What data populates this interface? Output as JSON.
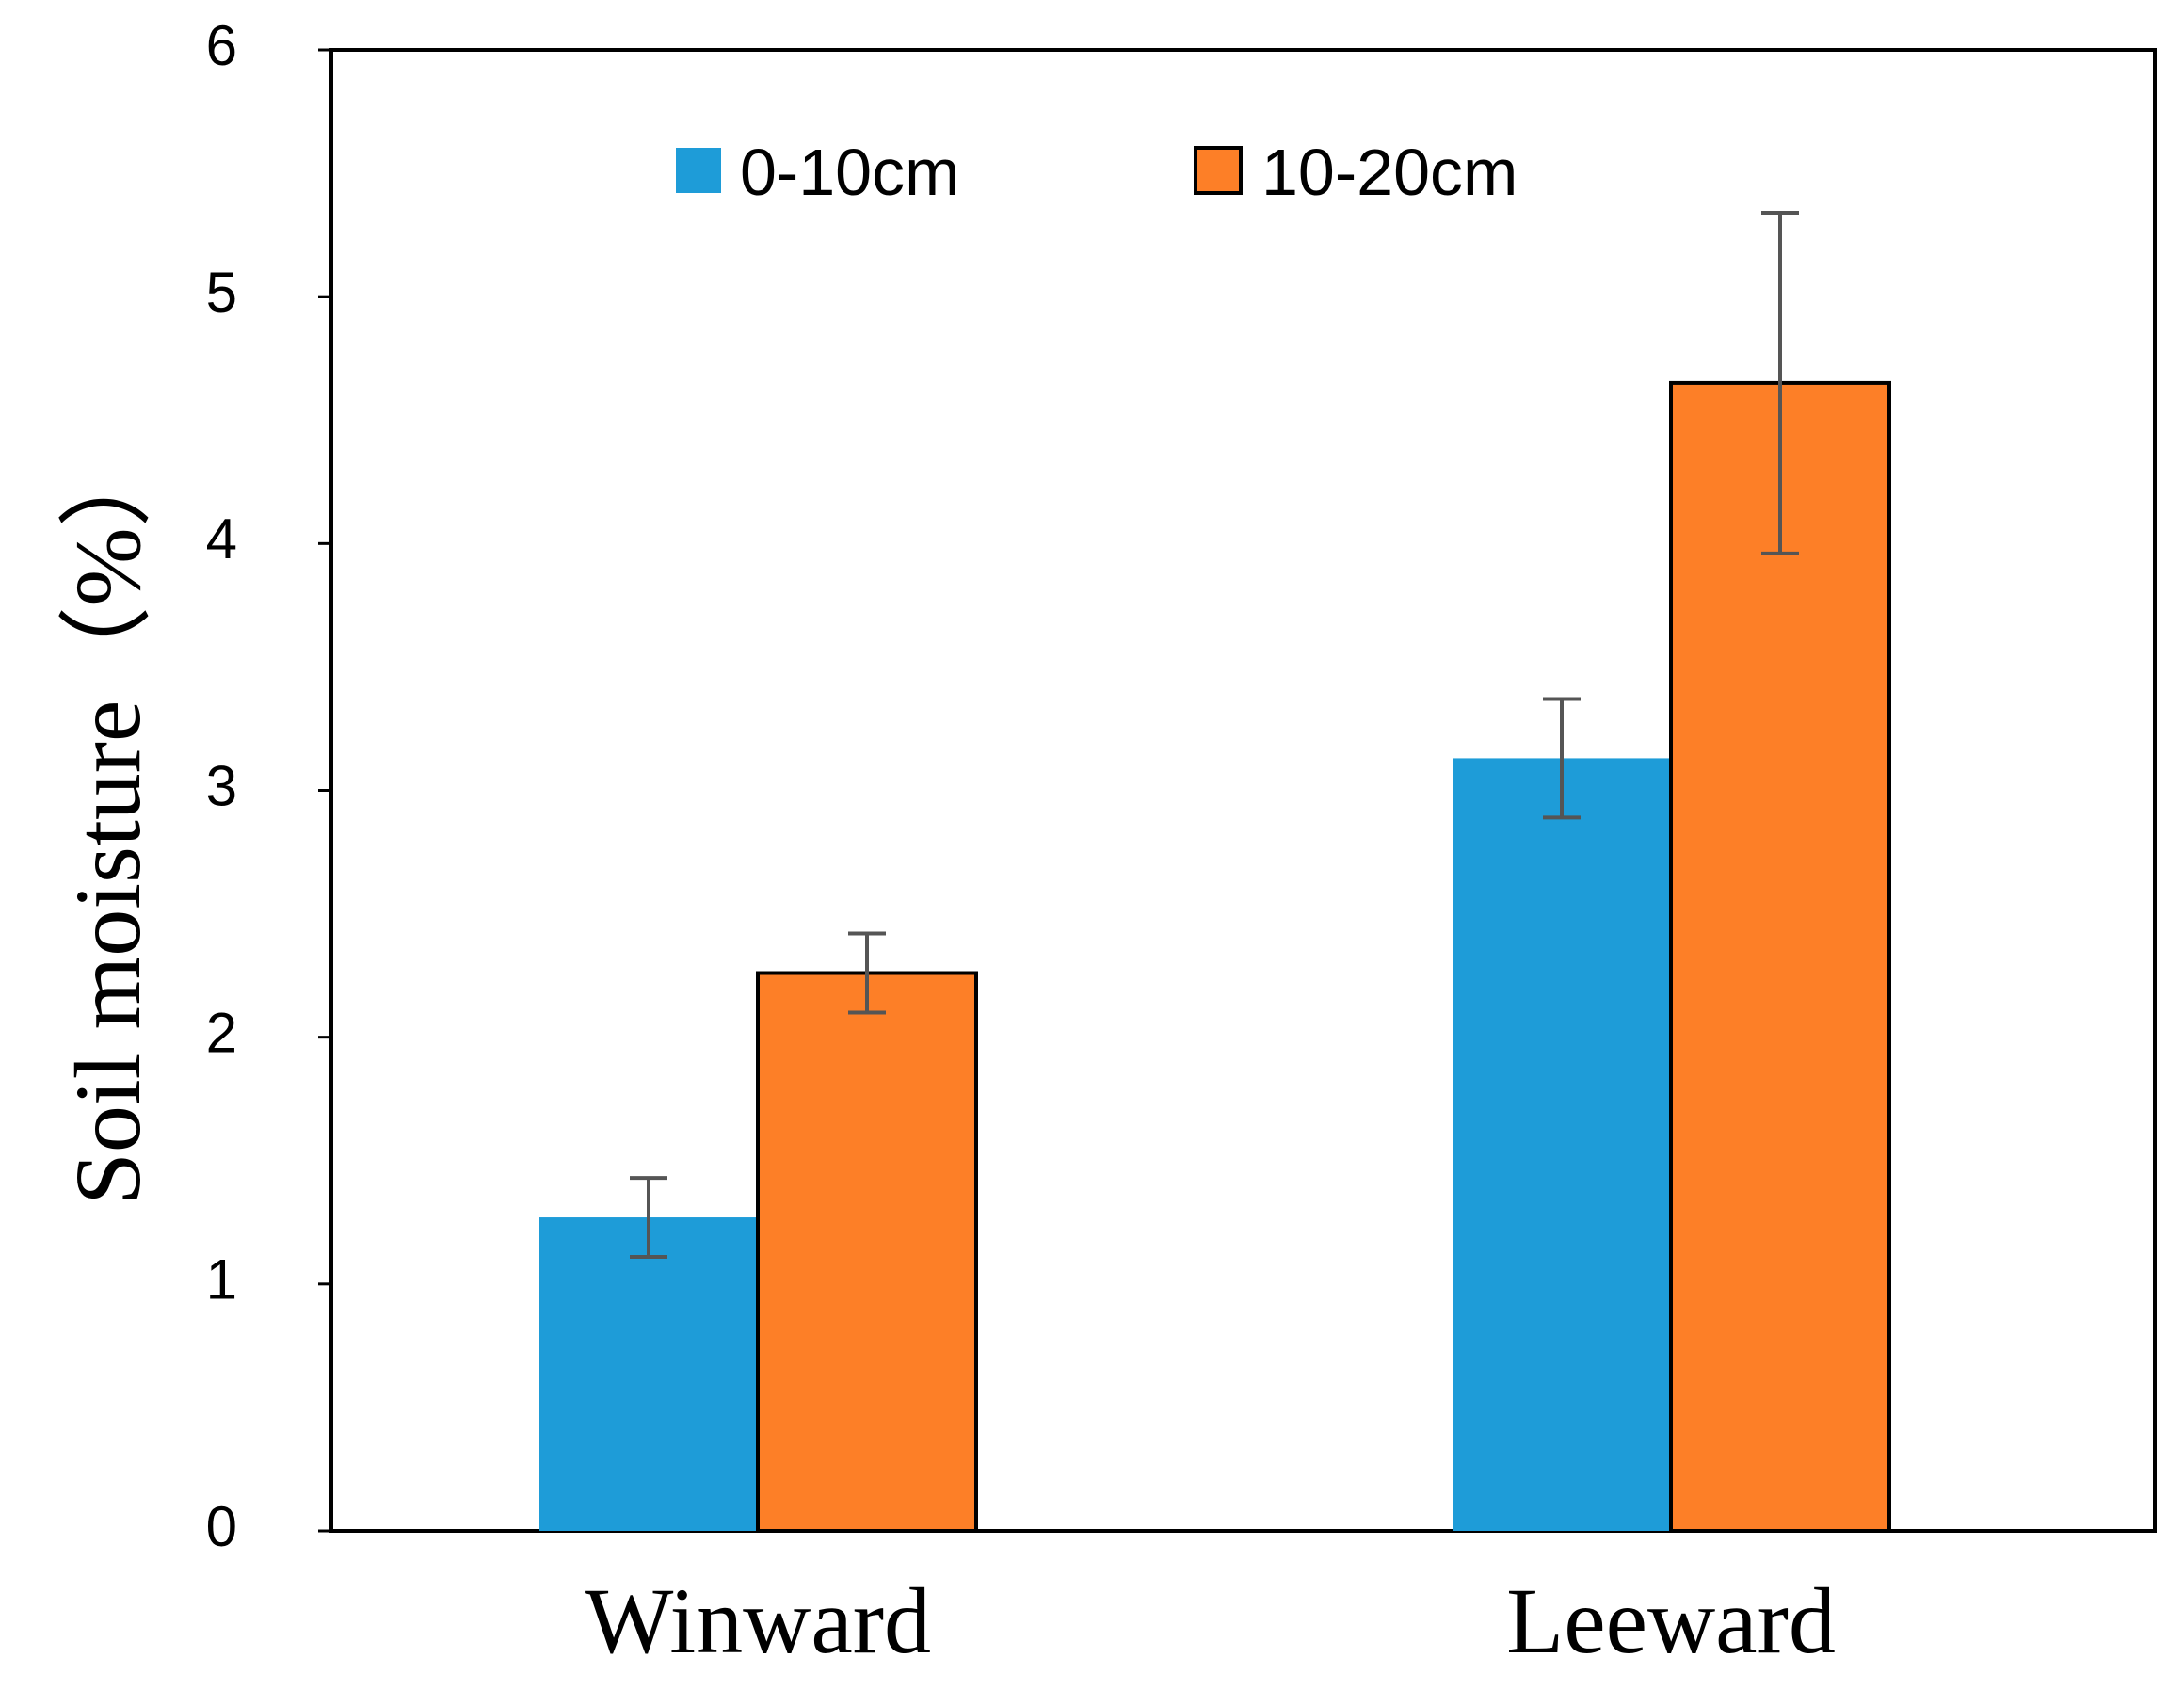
{
  "chart_data": {
    "type": "bar",
    "title": "",
    "xlabel": "",
    "ylabel": "Soil moisture（%）",
    "ylim": [
      0,
      6
    ],
    "yticks": [
      "0",
      "1",
      "2",
      "3",
      "4",
      "5",
      "6"
    ],
    "categories": [
      "Winward",
      "Leeward"
    ],
    "series": [
      {
        "name": "0-10cm",
        "color": "#1E9CD8",
        "values": [
          1.27,
          3.13
        ],
        "error": [
          0.16,
          0.24
        ]
      },
      {
        "name": "10-20cm",
        "color": "#FD7F27",
        "values": [
          2.26,
          4.65
        ],
        "error": [
          0.16,
          0.69
        ]
      }
    ],
    "legend_position": "top-center",
    "grid": false,
    "error_bar_color": "#555555"
  }
}
